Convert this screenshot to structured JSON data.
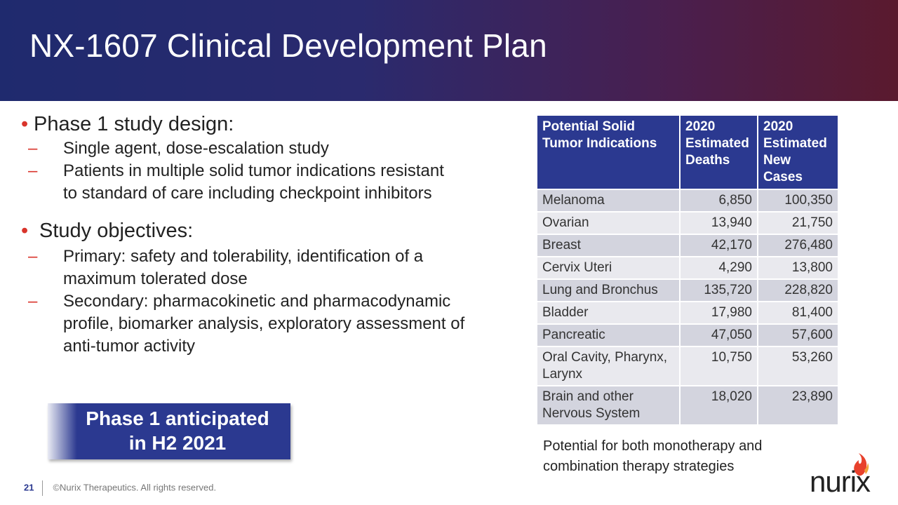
{
  "header": {
    "title": "NX-1607 Clinical Development Plan"
  },
  "bullets": [
    {
      "text": "Phase 1 study design:",
      "subs": [
        "Single agent, dose-escalation study",
        "Patients in multiple solid tumor indications resistant to standard of care including checkpoint inhibitors"
      ]
    },
    {
      "text": "Study objectives:",
      "subs": [
        "Primary: safety and tolerability, identification of a maximum tolerated dose",
        "Secondary: pharmacokinetic and pharmacodynamic profile, biomarker analysis, exploratory assessment of anti-tumor activity"
      ]
    }
  ],
  "callout": {
    "line1": "Phase 1 anticipated",
    "line2": "in H2 2021"
  },
  "table": {
    "headers": [
      "Potential Solid Tumor Indications",
      "2020 Estimated Deaths",
      "2020 Estimated New Cases"
    ],
    "rows": [
      [
        "Melanoma",
        "6,850",
        "100,350"
      ],
      [
        "Ovarian",
        "13,940",
        "21,750"
      ],
      [
        "Breast",
        "42,170",
        "276,480"
      ],
      [
        "Cervix Uteri",
        "4,290",
        "13,800"
      ],
      [
        "Lung and Bronchus",
        "135,720",
        "228,820"
      ],
      [
        "Bladder",
        "17,980",
        "81,400"
      ],
      [
        "Pancreatic",
        "47,050",
        "57,600"
      ],
      [
        "Oral Cavity, Pharynx, Larynx",
        "10,750",
        "53,260"
      ],
      [
        "Brain and other Nervous System",
        "18,020",
        "23,890"
      ]
    ]
  },
  "note": {
    "line1": "Potential for both monotherapy and",
    "line2": "combination therapy strategies"
  },
  "footer": {
    "page": "21",
    "copyright": "©Nurix Therapeutics. All rights reserved."
  },
  "logo": {
    "text": "nurix",
    "icon": "flame-icon"
  },
  "colors": {
    "accent_blue": "#2b3990",
    "bullet_red": "#d9342b"
  }
}
